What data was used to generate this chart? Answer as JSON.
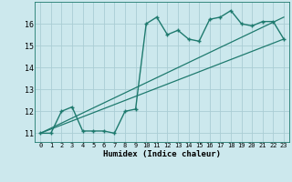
{
  "xlabel": "Humidex (Indice chaleur)",
  "bg_color": "#cce8ed",
  "grid_color": "#aacdd4",
  "line_color": "#1e7a6e",
  "xlim": [
    -0.5,
    23.5
  ],
  "ylim": [
    10.6,
    17.0
  ],
  "xticks": [
    0,
    1,
    2,
    3,
    4,
    5,
    6,
    7,
    8,
    9,
    10,
    11,
    12,
    13,
    14,
    15,
    16,
    17,
    18,
    19,
    20,
    21,
    22,
    23
  ],
  "yticks": [
    11,
    12,
    13,
    14,
    15,
    16
  ],
  "series1_x": [
    0,
    1,
    2,
    3,
    4,
    5,
    6,
    7,
    8,
    9,
    10,
    11,
    12,
    13,
    14,
    15,
    16,
    17,
    18,
    19,
    20,
    21,
    22,
    23
  ],
  "series1_y": [
    11.0,
    11.0,
    12.0,
    12.2,
    11.1,
    11.1,
    11.1,
    11.0,
    12.0,
    12.1,
    16.0,
    16.3,
    15.5,
    15.7,
    15.3,
    15.2,
    16.2,
    16.3,
    16.6,
    16.0,
    15.9,
    16.1,
    16.1,
    15.3
  ],
  "series2_x": [
    0,
    23
  ],
  "series2_y": [
    11.0,
    16.3
  ],
  "series3_x": [
    0,
    23
  ],
  "series3_y": [
    11.0,
    15.3
  ]
}
